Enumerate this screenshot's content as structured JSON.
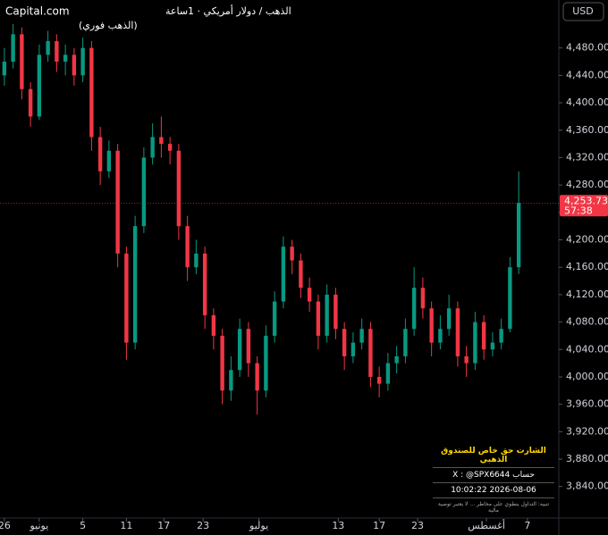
{
  "chart_data": {
    "type": "candlestick",
    "brand": "Capital.com",
    "title": "الذهب / دولار أمريكي · 1ساعة",
    "subtitle": "(الذهب فوري)",
    "currency": "USD",
    "up_color": "#089981",
    "down_color": "#f23645",
    "x": [
      0,
      1,
      2,
      3,
      4,
      5,
      6,
      7,
      8,
      9,
      10,
      11,
      12,
      13,
      14,
      15,
      16,
      17,
      18,
      19,
      20,
      21,
      22,
      23,
      24,
      25,
      26,
      27,
      28,
      29,
      30,
      31,
      32,
      33,
      34,
      35,
      36,
      37,
      38,
      39,
      40,
      41,
      42,
      43,
      44,
      45,
      46,
      47,
      48,
      49,
      50,
      51,
      52,
      53,
      54,
      55,
      56,
      57,
      58,
      59
    ],
    "open": [
      4440,
      4460,
      4500,
      4420,
      4380,
      4470,
      4490,
      4460,
      4470,
      4440,
      4480,
      4350,
      4300,
      4330,
      4180,
      4050,
      4220,
      4320,
      4350,
      4340,
      4330,
      4220,
      4160,
      4180,
      4090,
      4060,
      3980,
      4010,
      4070,
      4020,
      3980,
      4060,
      4110,
      4190,
      4170,
      4130,
      4110,
      4060,
      4120,
      4070,
      4030,
      4050,
      4070,
      4000,
      3990,
      4020,
      4030,
      4070,
      4130,
      4100,
      4050,
      4070,
      4100,
      4030,
      4020,
      4080,
      4040,
      4050,
      4070,
      4160
    ],
    "high": [
      4480,
      4515,
      4510,
      4430,
      4485,
      4505,
      4500,
      4485,
      4480,
      4495,
      4490,
      4365,
      4345,
      4340,
      4190,
      4235,
      4335,
      4370,
      4380,
      4350,
      4340,
      4235,
      4200,
      4190,
      4100,
      4070,
      4030,
      4085,
      4080,
      4030,
      4075,
      4125,
      4205,
      4200,
      4180,
      4145,
      4120,
      4135,
      4130,
      4080,
      4065,
      4085,
      4080,
      4015,
      4035,
      4045,
      4085,
      4160,
      4145,
      4110,
      4090,
      4120,
      4110,
      4045,
      4095,
      4090,
      4065,
      4085,
      4175,
      4300
    ],
    "low": [
      4425,
      4450,
      4405,
      4365,
      4375,
      4460,
      4445,
      4440,
      4425,
      4430,
      4330,
      4280,
      4290,
      4160,
      4025,
      4040,
      4210,
      4310,
      4320,
      4310,
      4200,
      4140,
      4150,
      4070,
      4040,
      3960,
      3965,
      4000,
      4000,
      3945,
      3970,
      4050,
      4100,
      4150,
      4115,
      4095,
      4040,
      4050,
      4055,
      4010,
      4020,
      4040,
      3985,
      3970,
      3980,
      4005,
      4020,
      4060,
      4085,
      4030,
      4040,
      4060,
      4015,
      4000,
      4010,
      4025,
      4030,
      4040,
      4065,
      4150
    ],
    "close": [
      4460,
      4500,
      4420,
      4380,
      4470,
      4490,
      4460,
      4470,
      4440,
      4480,
      4350,
      4300,
      4330,
      4180,
      4050,
      4220,
      4320,
      4350,
      4340,
      4330,
      4220,
      4160,
      4180,
      4090,
      4060,
      3980,
      4010,
      4070,
      4020,
      3980,
      4060,
      4110,
      4190,
      4170,
      4130,
      4110,
      4060,
      4120,
      4070,
      4030,
      4050,
      4070,
      4000,
      3990,
      4020,
      4030,
      4070,
      4130,
      4100,
      4050,
      4070,
      4100,
      4030,
      4020,
      4080,
      4040,
      4050,
      4070,
      4160,
      4253.73
    ],
    "xlim": [
      -0.5,
      63.6
    ],
    "xticks": [
      {
        "value": 0,
        "label": "26"
      },
      {
        "value": 4,
        "label": "يونيو"
      },
      {
        "value": 9,
        "label": "5"
      },
      {
        "value": 14,
        "label": "11"
      },
      {
        "value": 18.3,
        "label": "17"
      },
      {
        "value": 22.8,
        "label": "23"
      },
      {
        "value": 29.2,
        "label": "يوليو"
      },
      {
        "value": 38.3,
        "label": "13"
      },
      {
        "value": 43,
        "label": "17"
      },
      {
        "value": 47.4,
        "label": "23"
      },
      {
        "value": 55.3,
        "label": "أغسطس"
      },
      {
        "value": 60,
        "label": "7"
      }
    ],
    "ylim": [
      3794,
      4550
    ],
    "yticks": [
      {
        "value": 3840,
        "label": "3,840.00"
      },
      {
        "value": 3880,
        "label": "3,880.00"
      },
      {
        "value": 3920,
        "label": "3,920.00"
      },
      {
        "value": 3960,
        "label": "3,960.00"
      },
      {
        "value": 4000,
        "label": "4,000.00"
      },
      {
        "value": 4040,
        "label": "4,040.00"
      },
      {
        "value": 4080,
        "label": "4,080.00"
      },
      {
        "value": 4120,
        "label": "4,120.00"
      },
      {
        "value": 4160,
        "label": "4,160.00"
      },
      {
        "value": 4200,
        "label": "4,200.00"
      },
      {
        "value": 4240,
        "label": "4,240.00"
      },
      {
        "value": 4280,
        "label": "4,280.00"
      },
      {
        "value": 4320,
        "label": "4,320.00"
      },
      {
        "value": 4360,
        "label": "4,360.00"
      },
      {
        "value": 4400,
        "label": "4,400.00"
      },
      {
        "value": 4440,
        "label": "4,440.00"
      },
      {
        "value": 4480,
        "label": "4,480.00"
      }
    ],
    "last_price": {
      "value": 4253.73,
      "label": "4,253.73"
    },
    "countdown": "57:38"
  },
  "overlay": {
    "title": "الشارت حق خاص للصندوق الذهبي",
    "account_label": "حساب X",
    "account": "@SPX6644",
    "timestamp": "2026-08-06 10:02:22",
    "disclaimer": "تنبيه: التداول ينطوي على مخاطر ... لا يعتبر توصية مالية"
  }
}
